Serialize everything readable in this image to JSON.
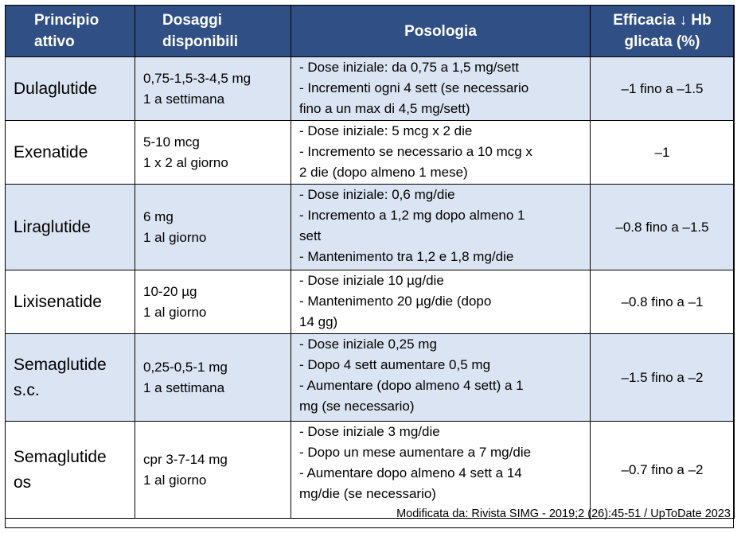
{
  "table": {
    "headers": {
      "principio": [
        "Principio",
        "attivo"
      ],
      "dosaggi": [
        "Dosaggi",
        "disponibili"
      ],
      "posologia": "Posologia",
      "efficacia": [
        "Efficacia ↓ Hb",
        "glicata (%)"
      ]
    },
    "rows": [
      {
        "name": [
          "Dulaglutide"
        ],
        "dose": [
          "0,75-1,5-3-4,5 mg",
          "1 a settimana"
        ],
        "posologia": [
          "- Dose iniziale: da 0,75 a 1,5 mg/sett",
          "- Incrementi ogni 4 sett (se necessario",
          "fino a un max di 4,5 mg/sett)"
        ],
        "efficacia": "–1 fino a –1.5"
      },
      {
        "name": [
          "Exenatide"
        ],
        "dose": [
          "5-10 mcg",
          "1 x 2 al giorno"
        ],
        "posologia": [
          "- Dose iniziale: 5 mcg x 2 die",
          "- Incremento se necessario a 10 mcg x",
          "2 die (dopo almeno 1 mese)"
        ],
        "efficacia": "–1"
      },
      {
        "name": [
          "Liraglutide"
        ],
        "dose": [
          "6 mg",
          "1 al giorno"
        ],
        "posologia": [
          "- Dose iniziale: 0,6 mg/die",
          "- Incremento a 1,2 mg dopo almeno 1",
          "sett",
          "- Mantenimento tra 1,2 e 1,8 mg/die"
        ],
        "efficacia": "–0.8 fino a –1.5"
      },
      {
        "name": [
          "Lixisenatide"
        ],
        "dose": [
          "10-20 µg",
          "1 al giorno"
        ],
        "posologia": [
          "- Dose iniziale 10 µg/die",
          "- Mantenimento 20 µg/die (dopo",
          "14 gg)"
        ],
        "efficacia": "–0.8 fino a –1"
      },
      {
        "name": [
          "Semaglutide",
          "s.c."
        ],
        "dose": [
          "0,25-0,5-1 mg",
          "1 a settimana"
        ],
        "posologia": [
          "- Dose iniziale 0,25 mg",
          "- Dopo 4 sett aumentare 0,5 mg",
          "- Aumentare (dopo almeno 4 sett) a 1",
          "mg (se necessario)"
        ],
        "efficacia": "–1.5 fino a –2"
      },
      {
        "name": [
          "Semaglutide",
          "os"
        ],
        "dose": [
          "cpr 3-7-14 mg",
          "1 al giorno"
        ],
        "posologia": [
          "- Dose iniziale 3 mg/die",
          "- Dopo un mese aumentare a 7 mg/die",
          "- Aumentare dopo almeno 4 sett a 14",
          "mg/die (se necessario)"
        ],
        "efficacia": "–0.7 fino a –2"
      }
    ],
    "source": "Modificata da: Rivista SIMG - 2019;2 (26):45-51 / UpToDate 2023"
  }
}
